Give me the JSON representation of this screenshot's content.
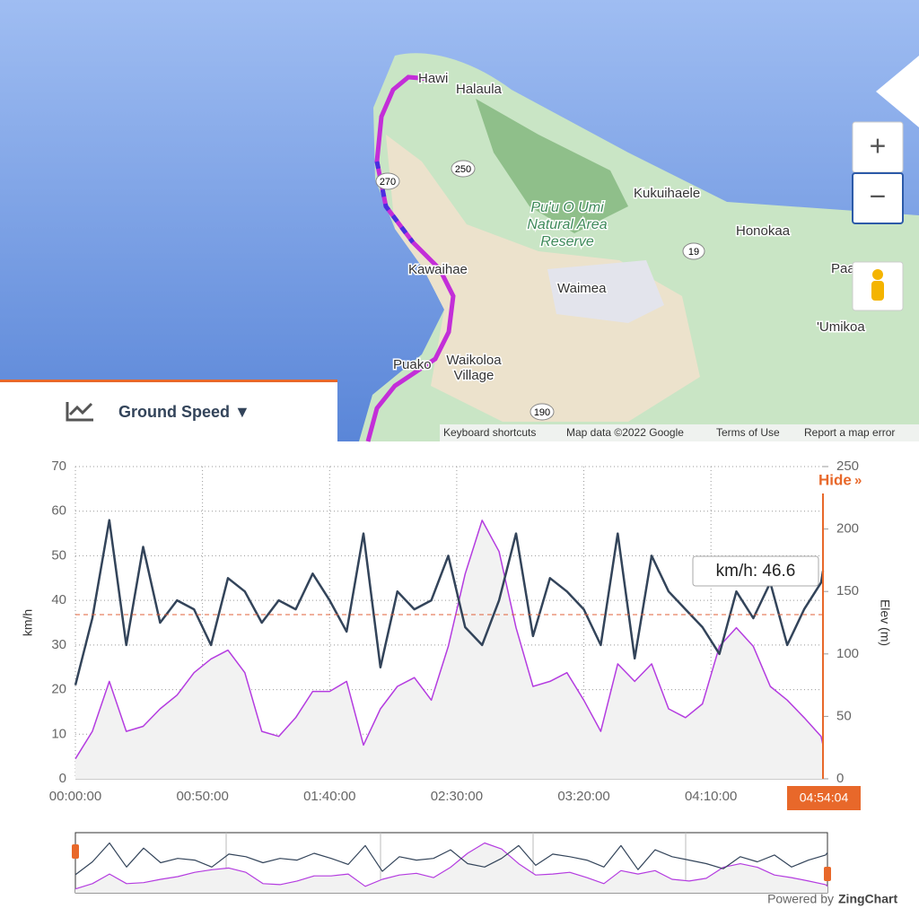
{
  "map": {
    "places": [
      "Hawi",
      "Halaula",
      "Kukuihaele",
      "Pu'u O Umi",
      "Natural Area",
      "Reserve",
      "Honokaa",
      "Kawaihae",
      "Waimea",
      "Paa",
      "'Umikoa",
      "Puako",
      "Waikoloa",
      "Village"
    ],
    "roads": [
      "250",
      "270",
      "19",
      "190"
    ],
    "footer": [
      "Keyboard shortcuts",
      "Map data ©2022 Google",
      "Terms of Use",
      "Report a map error"
    ],
    "zoom_in": "+",
    "zoom_out": "−"
  },
  "metric_selector": "Ground Speed ▼",
  "hide_button": "Hide",
  "credit": [
    "Powered by",
    "ZingChart"
  ],
  "chart_data": {
    "type": "line",
    "x": [
      0,
      400,
      800,
      1200,
      1600,
      2000,
      2400,
      2800,
      3200,
      3600,
      4000,
      4400,
      4800,
      5200,
      5600,
      6000,
      6400,
      6800,
      7200,
      7600,
      8000,
      8400,
      8800,
      9200,
      9600,
      10000,
      10400,
      10800,
      11200,
      11600,
      12000,
      12400,
      12800,
      13200,
      13600,
      14000,
      14400,
      14800,
      15200,
      15600,
      16000,
      16400,
      16800,
      17200,
      17600,
      17644
    ],
    "xlim": [
      0,
      17644
    ],
    "xticks": [
      {
        "value": 0,
        "label": "00:00:00"
      },
      {
        "value": 3000,
        "label": "00:50:00"
      },
      {
        "value": 6000,
        "label": "01:40:00"
      },
      {
        "value": 9000,
        "label": "02:30:00"
      },
      {
        "value": 12000,
        "label": "03:20:00"
      },
      {
        "value": 15000,
        "label": "04:10:00"
      }
    ],
    "ylim": [
      0,
      70
    ],
    "yticks": [
      0,
      10,
      20,
      30,
      40,
      50,
      60,
      70
    ],
    "y2lim": [
      0,
      250
    ],
    "y2ticks": [
      0,
      50,
      100,
      150,
      200,
      250
    ],
    "series": [
      {
        "name": "km/h",
        "color": "#33445a",
        "values": [
          21,
          36,
          58,
          30,
          52,
          35,
          40,
          38,
          30,
          45,
          42,
          35,
          40,
          38,
          46,
          40,
          33,
          55,
          25,
          42,
          38,
          40,
          50,
          34,
          30,
          40,
          55,
          32,
          45,
          42,
          38,
          30,
          55,
          27,
          50,
          42,
          38,
          34,
          28,
          42,
          36,
          44,
          30,
          38,
          44,
          46.6
        ]
      },
      {
        "name": "Elev (m)",
        "color": "#b43ce0",
        "axis": "y2",
        "values": [
          16,
          38,
          78,
          38,
          42,
          56,
          67,
          85,
          96,
          103,
          85,
          38,
          34,
          49,
          70,
          70,
          78,
          27,
          56,
          74,
          81,
          63,
          106,
          164,
          207,
          182,
          121,
          74,
          78,
          85,
          63,
          38,
          92,
          78,
          92,
          56,
          49,
          60,
          106,
          121,
          106,
          74,
          63,
          49,
          34,
          27
        ]
      }
    ],
    "ref_line": {
      "value": 36.8,
      "color": "#e0603a"
    },
    "cursor": {
      "value": 17644,
      "label": "04:54:04",
      "color": "#e8682a"
    },
    "tooltip": "km/h: 46.6",
    "grid": true
  }
}
